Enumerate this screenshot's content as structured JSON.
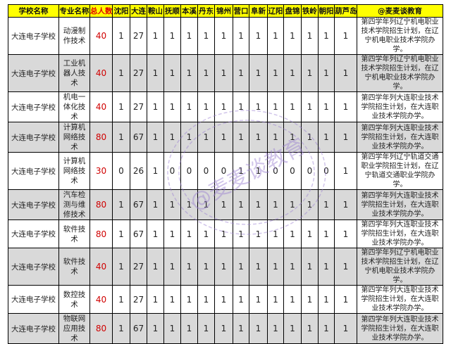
{
  "headers": [
    "学校名称",
    "专业名称",
    "总人数",
    "沈阳",
    "大连",
    "鞍山",
    "抚顺",
    "本溪",
    "丹东",
    "锦州",
    "营口",
    "阜新",
    "辽阳",
    "盘锦",
    "铁岭",
    "朝阳",
    "葫芦岛",
    "@麦麦谈教育"
  ],
  "accent_colors": {
    "header_bg": "#FFFF00",
    "total_text": "#D00000",
    "alt_row_bg": "#D9D9D9",
    "watermark": "#9B7FD1"
  },
  "watermark_text": "@麦麦谈教育",
  "rows": [
    {
      "school": "大连电子学校",
      "major": "动漫制作技术",
      "total": "40",
      "cities": [
        "1",
        "27",
        "1",
        "1",
        "1",
        "1",
        "1",
        "1",
        "1",
        "1",
        "1",
        "1",
        "1",
        "1"
      ],
      "note": "第四学年列辽宁机电职业技术学院招生计划，在辽宁机电职业技术学院办学。"
    },
    {
      "school": "大连电子学校",
      "major": "工业机器人技术",
      "total": "40",
      "cities": [
        "1",
        "27",
        "1",
        "1",
        "1",
        "1",
        "1",
        "1",
        "1",
        "1",
        "1",
        "1",
        "1",
        "1"
      ],
      "note": "第四学年列辽宁机电职业技术学院招生计划，在辽宁机电职业技术学院办学。"
    },
    {
      "school": "大连电子学校",
      "major": "机电一体化技术",
      "total": "40",
      "cities": [
        "1",
        "27",
        "1",
        "1",
        "1",
        "1",
        "1",
        "1",
        "1",
        "1",
        "1",
        "1",
        "1",
        "1"
      ],
      "note": "第四学年列大连职业技术学院招生计划，在大连职业技术学院办学。"
    },
    {
      "school": "大连电子学校",
      "major": "计算机网络技术",
      "total": "80",
      "cities": [
        "1",
        "67",
        "1",
        "1",
        "1",
        "1",
        "1",
        "1",
        "1",
        "1",
        "1",
        "1",
        "1",
        "1"
      ],
      "note": "第四学年列大连职业技术学院招生计划，在大连职业技术学院办学。"
    },
    {
      "school": "大连电子学校",
      "major": "计算机网络技术",
      "total": "30",
      "cities": [
        "0",
        "26",
        "1",
        "0",
        "0",
        "0",
        "0",
        "1",
        "1",
        "0",
        "0",
        "0",
        "0",
        "1"
      ],
      "note": "第四学年列辽宁轨道交通职业学院招生计划，在辽宁轨道交通职业学院办学。"
    },
    {
      "school": "大连电子学校",
      "major": "汽车检测与维修技术",
      "total": "80",
      "cities": [
        "1",
        "67",
        "1",
        "1",
        "1",
        "1",
        "1",
        "1",
        "1",
        "1",
        "1",
        "1",
        "1",
        "1"
      ],
      "note": "第四学年列大连职业技术学院招生计划，在大连职业技术学院办学。"
    },
    {
      "school": "大连电子学校",
      "major": "软件技术",
      "total": "80",
      "cities": [
        "1",
        "67",
        "1",
        "1",
        "1",
        "1",
        "1",
        "1",
        "1",
        "1",
        "1",
        "1",
        "1",
        "1"
      ],
      "note": "第四学年列大连职业技术学院招生计划，在大连职业技术学院办学。"
    },
    {
      "school": "大连电子学校",
      "major": "软件技术",
      "total": "40",
      "cities": [
        "1",
        "27",
        "1",
        "1",
        "1",
        "1",
        "1",
        "1",
        "1",
        "1",
        "1",
        "1",
        "1",
        "1"
      ],
      "note": "第四学年列辽宁机电职业技术学院招生计划，在辽宁机电职业技术学院办学。"
    },
    {
      "school": "大连电子学校",
      "major": "数控技术",
      "total": "40",
      "cities": [
        "1",
        "27",
        "1",
        "1",
        "1",
        "1",
        "1",
        "1",
        "1",
        "1",
        "1",
        "1",
        "1",
        "1"
      ],
      "note": "第四学年列大连职业技术学院招生计划，在大连职业技术学院办学。"
    },
    {
      "school": "大连电子学校",
      "major": "物联网应用技术",
      "total": "80",
      "cities": [
        "1",
        "67",
        "1",
        "1",
        "1",
        "1",
        "1",
        "1",
        "1",
        "1",
        "1",
        "1",
        "1",
        "1"
      ],
      "note": "第四学年列大连职业技术学院招生计划，在大连职业技术学院办学。"
    }
  ]
}
